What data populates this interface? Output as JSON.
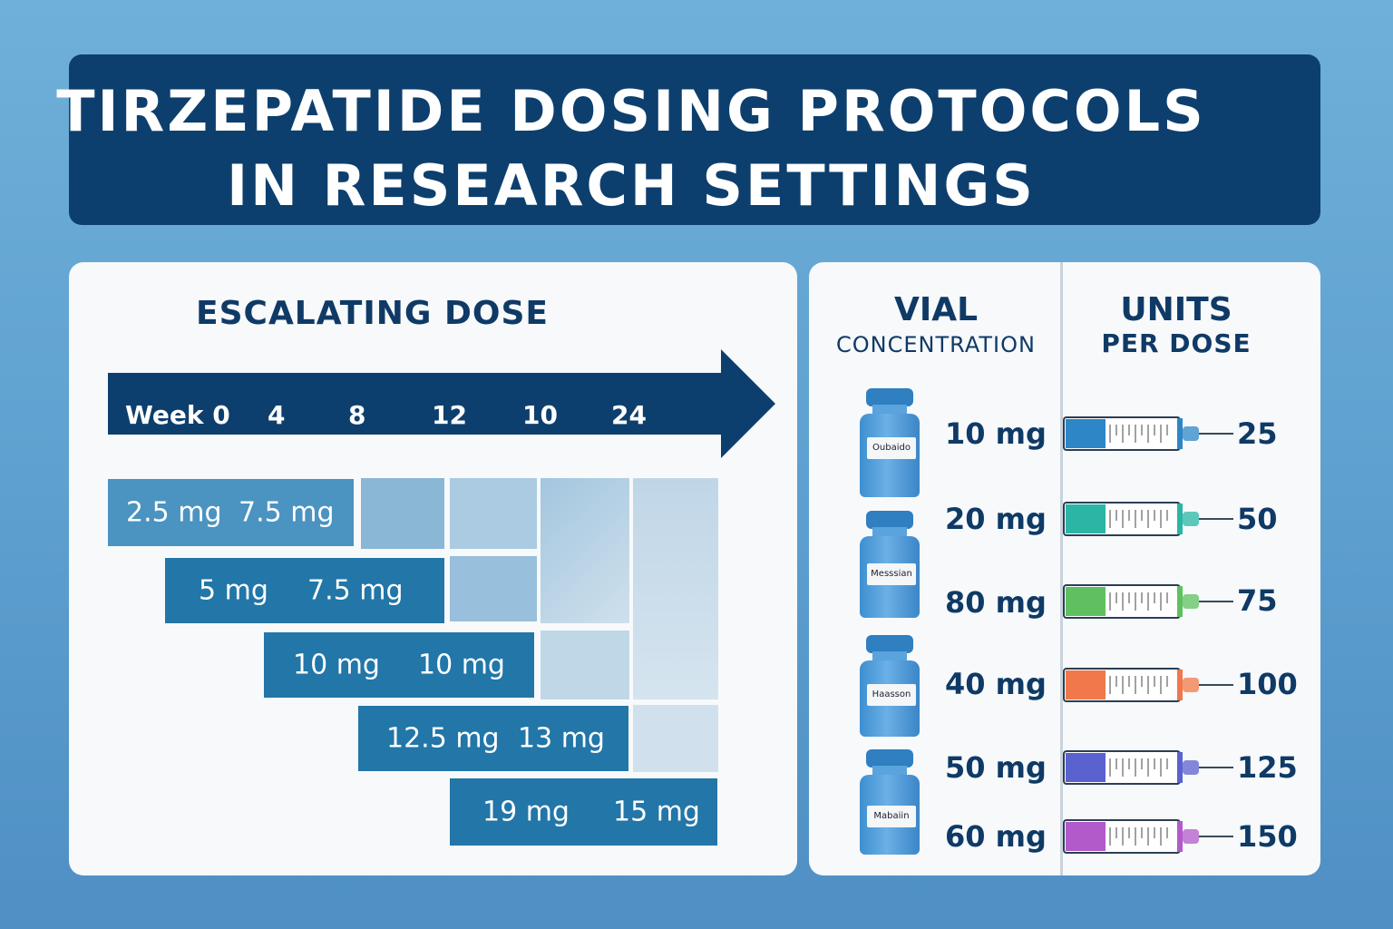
{
  "title": {
    "line1": "TIRZEPATIDE DOSING PROTOCOLS",
    "line2": "IN RESEARCH SETTINGS"
  },
  "escalating": {
    "heading": "ESCALATING DOSE",
    "weeks": [
      "Week 0",
      "4",
      "8",
      "12",
      "10",
      "24"
    ],
    "rows": [
      {
        "a": "2.5 mg",
        "b": "7.5 mg"
      },
      {
        "a": "5 mg",
        "b": "7.5 mg"
      },
      {
        "a": "10 mg",
        "b": "10 mg"
      },
      {
        "a": "12.5 mg",
        "b": "13 mg"
      },
      {
        "a": "19 mg",
        "b": "15 mg"
      }
    ]
  },
  "vials": {
    "heading": "VIAL",
    "subheading": "CONCENTRATION",
    "items": [
      {
        "concentration": "10 mg",
        "label": "Oubaido"
      },
      {
        "concentration": "20 mg",
        "label": "Messsian"
      },
      {
        "concentration": "80 mg",
        "label": ""
      },
      {
        "concentration": "40 mg",
        "label": "Haasson"
      },
      {
        "concentration": "50 mg",
        "label": "Mabaiin"
      },
      {
        "concentration": "60 mg",
        "label": ""
      }
    ]
  },
  "units": {
    "heading": "UNITS",
    "subheading": "PER DOSE",
    "items": [
      {
        "value": "25",
        "color": "#2f86c6"
      },
      {
        "value": "50",
        "color": "#2bb5a5"
      },
      {
        "value": "75",
        "color": "#5fc060"
      },
      {
        "value": "100",
        "color": "#f0784a"
      },
      {
        "value": "125",
        "color": "#5a62cf"
      },
      {
        "value": "150",
        "color": "#b25ac9"
      }
    ]
  },
  "colors": {
    "banner": "#0d3f6e",
    "dose_bar": "#2276a8",
    "text_dark": "#0f3a66"
  }
}
